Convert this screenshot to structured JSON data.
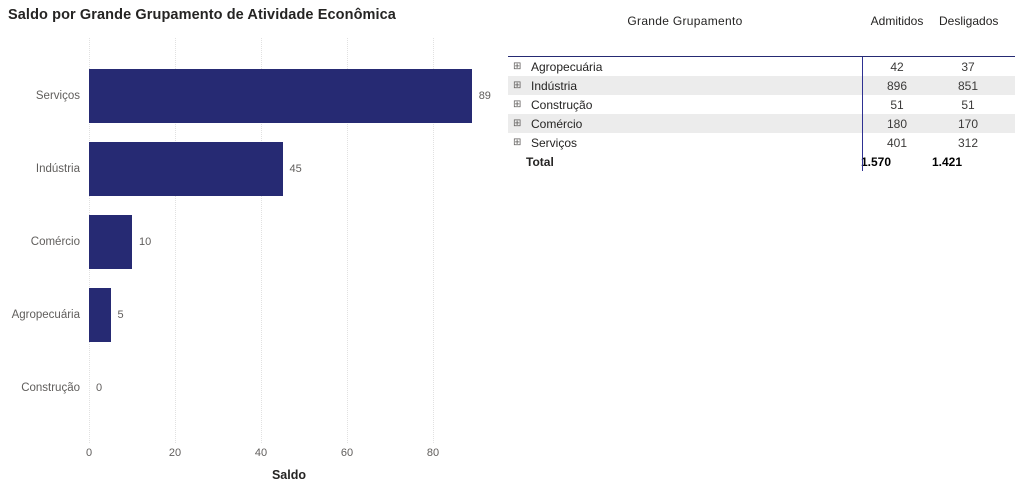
{
  "chart": {
    "title": "Saldo por Grande Grupamento de Atividade Econômica",
    "xlabel": "Saldo",
    "bar_color": "#262a73",
    "label_color": "#605e5c"
  },
  "chart_data": {
    "type": "bar",
    "orientation": "horizontal",
    "title": "Saldo por Grande Grupamento de Atividade Econômica",
    "categories": [
      "Serviços",
      "Indústria",
      "Comércio",
      "Agropecuária",
      "Construção"
    ],
    "values": [
      89,
      45,
      10,
      5,
      0
    ],
    "xlabel": "Saldo",
    "ylabel": "",
    "xlim": [
      0,
      93
    ],
    "x_ticks": [
      0,
      20,
      40,
      60,
      80
    ],
    "grid": true,
    "bar_color": "#262a73",
    "legend": "none"
  },
  "table": {
    "columns": [
      "Grande Grupamento",
      "Admitidos",
      "Desligados"
    ],
    "expand_icon": "⊞",
    "rows": [
      {
        "label": "Agropecuária",
        "admitidos": "42",
        "desligados": "37"
      },
      {
        "label": "Indústria",
        "admitidos": "896",
        "desligados": "851"
      },
      {
        "label": "Construção",
        "admitidos": "51",
        "desligados": "51"
      },
      {
        "label": "Comércio",
        "admitidos": "180",
        "desligados": "170"
      },
      {
        "label": "Serviços",
        "admitidos": "401",
        "desligados": "312"
      }
    ],
    "total": {
      "label": "Total",
      "admitidos": "1.570",
      "desligados": "1.421"
    },
    "accent_color": "#2e3192",
    "stripe_color": "#ececec"
  }
}
